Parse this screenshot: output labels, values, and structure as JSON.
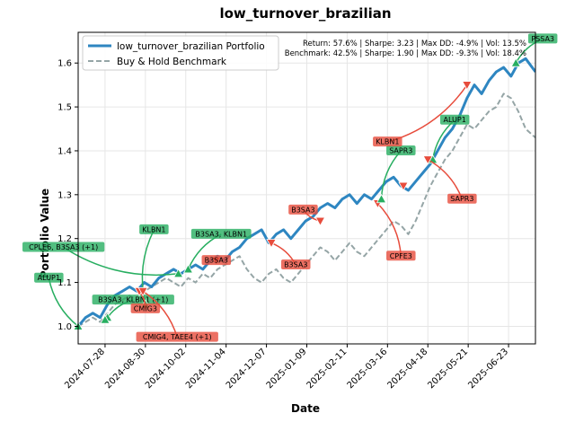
{
  "chart_data": {
    "type": "line",
    "title": "low_turnover_brazilian",
    "xlabel": "Date",
    "ylabel": "Portfolio Value",
    "xlim": [
      "2024-07-06",
      "2025-07-15"
    ],
    "ylim": [
      0.96,
      1.67
    ],
    "x_ticks": [
      "2024-07-28",
      "2024-08-30",
      "2024-10-02",
      "2024-11-04",
      "2024-12-07",
      "2025-01-09",
      "2025-02-11",
      "2025-03-16",
      "2025-04-18",
      "2025-05-21",
      "2025-06-23"
    ],
    "y_ticks": [
      1.0,
      1.1,
      1.2,
      1.3,
      1.4,
      1.5,
      1.6
    ],
    "y_tick_labels": [
      "1.0",
      "1.1",
      "1.2",
      "1.3",
      "1.4",
      "1.5",
      "1.6"
    ],
    "grid": true,
    "legend_position": "top-left",
    "stats_text": [
      "Return: 57.6% | Sharpe: 3.23 | Max DD: -4.9% | Vol: 13.5%",
      "Benchmark: 42.5% | Sharpe: 1.90 | Max DD: -9.3% | Vol: 18.4%"
    ],
    "series": [
      {
        "name": "low_turnover_brazilian Portfolio",
        "color": "#2e86c1",
        "style": "solid",
        "points": [
          [
            "2024-07-06",
            1.0
          ],
          [
            "2024-07-12",
            1.02
          ],
          [
            "2024-07-18",
            1.03
          ],
          [
            "2024-07-24",
            1.02
          ],
          [
            "2024-07-30",
            1.05
          ],
          [
            "2024-08-05",
            1.07
          ],
          [
            "2024-08-11",
            1.08
          ],
          [
            "2024-08-17",
            1.09
          ],
          [
            "2024-08-23",
            1.08
          ],
          [
            "2024-08-29",
            1.1
          ],
          [
            "2024-09-04",
            1.09
          ],
          [
            "2024-09-10",
            1.11
          ],
          [
            "2024-09-16",
            1.12
          ],
          [
            "2024-09-22",
            1.13
          ],
          [
            "2024-09-28",
            1.12
          ],
          [
            "2024-10-04",
            1.13
          ],
          [
            "2024-10-10",
            1.14
          ],
          [
            "2024-10-16",
            1.13
          ],
          [
            "2024-10-22",
            1.15
          ],
          [
            "2024-10-28",
            1.16
          ],
          [
            "2024-11-03",
            1.15
          ],
          [
            "2024-11-09",
            1.17
          ],
          [
            "2024-11-15",
            1.18
          ],
          [
            "2024-11-21",
            1.2
          ],
          [
            "2024-11-27",
            1.21
          ],
          [
            "2024-12-03",
            1.22
          ],
          [
            "2024-12-09",
            1.19
          ],
          [
            "2024-12-15",
            1.21
          ],
          [
            "2024-12-21",
            1.22
          ],
          [
            "2024-12-27",
            1.2
          ],
          [
            "2025-01-02",
            1.22
          ],
          [
            "2025-01-08",
            1.24
          ],
          [
            "2025-01-14",
            1.25
          ],
          [
            "2025-01-20",
            1.27
          ],
          [
            "2025-01-26",
            1.28
          ],
          [
            "2025-02-01",
            1.27
          ],
          [
            "2025-02-07",
            1.29
          ],
          [
            "2025-02-13",
            1.3
          ],
          [
            "2025-02-19",
            1.28
          ],
          [
            "2025-02-25",
            1.3
          ],
          [
            "2025-03-03",
            1.29
          ],
          [
            "2025-03-09",
            1.31
          ],
          [
            "2025-03-15",
            1.33
          ],
          [
            "2025-03-21",
            1.34
          ],
          [
            "2025-03-27",
            1.32
          ],
          [
            "2025-04-02",
            1.31
          ],
          [
            "2025-04-08",
            1.33
          ],
          [
            "2025-04-14",
            1.35
          ],
          [
            "2025-04-20",
            1.37
          ],
          [
            "2025-04-26",
            1.4
          ],
          [
            "2025-05-02",
            1.43
          ],
          [
            "2025-05-08",
            1.45
          ],
          [
            "2025-05-14",
            1.48
          ],
          [
            "2025-05-20",
            1.52
          ],
          [
            "2025-05-26",
            1.55
          ],
          [
            "2025-06-01",
            1.53
          ],
          [
            "2025-06-07",
            1.56
          ],
          [
            "2025-06-13",
            1.58
          ],
          [
            "2025-06-19",
            1.59
          ],
          [
            "2025-06-25",
            1.57
          ],
          [
            "2025-07-01",
            1.6
          ],
          [
            "2025-07-07",
            1.61
          ],
          [
            "2025-07-15",
            1.58
          ]
        ]
      },
      {
        "name": "Buy & Hold Benchmark",
        "color": "#95a5a6",
        "style": "dashed",
        "points": [
          [
            "2024-07-06",
            1.0
          ],
          [
            "2024-07-12",
            1.01
          ],
          [
            "2024-07-18",
            1.02
          ],
          [
            "2024-07-24",
            1.01
          ],
          [
            "2024-07-30",
            1.03
          ],
          [
            "2024-08-05",
            1.05
          ],
          [
            "2024-08-11",
            1.06
          ],
          [
            "2024-08-17",
            1.07
          ],
          [
            "2024-08-23",
            1.06
          ],
          [
            "2024-08-29",
            1.08
          ],
          [
            "2024-09-04",
            1.09
          ],
          [
            "2024-09-10",
            1.1
          ],
          [
            "2024-09-16",
            1.11
          ],
          [
            "2024-09-22",
            1.1
          ],
          [
            "2024-09-28",
            1.09
          ],
          [
            "2024-10-04",
            1.11
          ],
          [
            "2024-10-10",
            1.1
          ],
          [
            "2024-10-16",
            1.12
          ],
          [
            "2024-10-22",
            1.11
          ],
          [
            "2024-10-28",
            1.13
          ],
          [
            "2024-11-03",
            1.14
          ],
          [
            "2024-11-09",
            1.15
          ],
          [
            "2024-11-15",
            1.16
          ],
          [
            "2024-11-21",
            1.13
          ],
          [
            "2024-11-27",
            1.11
          ],
          [
            "2024-12-03",
            1.1
          ],
          [
            "2024-12-09",
            1.12
          ],
          [
            "2024-12-15",
            1.13
          ],
          [
            "2024-12-21",
            1.11
          ],
          [
            "2024-12-27",
            1.1
          ],
          [
            "2025-01-02",
            1.12
          ],
          [
            "2025-01-08",
            1.14
          ],
          [
            "2025-01-14",
            1.16
          ],
          [
            "2025-01-20",
            1.18
          ],
          [
            "2025-01-26",
            1.17
          ],
          [
            "2025-02-01",
            1.15
          ],
          [
            "2025-02-07",
            1.17
          ],
          [
            "2025-02-13",
            1.19
          ],
          [
            "2025-02-19",
            1.17
          ],
          [
            "2025-02-25",
            1.16
          ],
          [
            "2025-03-03",
            1.18
          ],
          [
            "2025-03-09",
            1.2
          ],
          [
            "2025-03-15",
            1.22
          ],
          [
            "2025-03-21",
            1.24
          ],
          [
            "2025-03-27",
            1.23
          ],
          [
            "2025-04-02",
            1.21
          ],
          [
            "2025-04-08",
            1.24
          ],
          [
            "2025-04-14",
            1.28
          ],
          [
            "2025-04-20",
            1.32
          ],
          [
            "2025-04-26",
            1.35
          ],
          [
            "2025-05-02",
            1.38
          ],
          [
            "2025-05-08",
            1.4
          ],
          [
            "2025-05-14",
            1.43
          ],
          [
            "2025-05-20",
            1.46
          ],
          [
            "2025-05-26",
            1.45
          ],
          [
            "2025-06-01",
            1.47
          ],
          [
            "2025-06-07",
            1.49
          ],
          [
            "2025-06-13",
            1.5
          ],
          [
            "2025-06-19",
            1.53
          ],
          [
            "2025-06-25",
            1.52
          ],
          [
            "2025-07-01",
            1.49
          ],
          [
            "2025-07-07",
            1.45
          ],
          [
            "2025-07-15",
            1.43
          ]
        ]
      }
    ],
    "annotations": [
      {
        "label": "ALUP1",
        "kind": "buy",
        "point": [
          "2024-07-06",
          1.0
        ],
        "text_at": [
          "2024-06-12",
          1.11
        ]
      },
      {
        "label": "CPLE6, B3SA3 (+1)",
        "kind": "buy",
        "point": [
          "2024-09-26",
          1.12
        ],
        "text_at": [
          "2024-06-24",
          1.18
        ]
      },
      {
        "label": "B3SA3, KLBN1 (+1)",
        "kind": "buy",
        "point": [
          "2024-07-30",
          1.02
        ],
        "text_at": [
          "2024-08-20",
          1.06
        ]
      },
      {
        "label": "KLBN1",
        "kind": "buy",
        "point": [
          "2024-08-30",
          1.05
        ],
        "text_at": [
          "2024-09-06",
          1.22
        ]
      },
      {
        "label": "CMIG3",
        "kind": "sell",
        "point": [
          "2024-08-25",
          1.08
        ],
        "text_at": [
          "2024-08-30",
          1.04
        ]
      },
      {
        "label": "CMIG4, TAEE4 (+1)",
        "kind": "sell",
        "point": [
          "2024-08-28",
          1.08
        ],
        "text_at": [
          "2024-09-25",
          0.975
        ]
      },
      {
        "label": "B3SA3, KLBN1",
        "kind": "buy",
        "point": [
          "2024-10-04",
          1.13
        ],
        "text_at": [
          "2024-10-31",
          1.21
        ]
      },
      {
        "label": "B3SA3",
        "kind": "sell",
        "point": [
          "2024-10-27",
          1.15
        ],
        "text_at": [
          "2024-10-27",
          1.15
        ]
      },
      {
        "label": "B3SA3",
        "kind": "sell",
        "point": [
          "2024-12-11",
          1.19
        ],
        "text_at": [
          "2024-12-31",
          1.14
        ]
      },
      {
        "label": "B3SA3",
        "kind": "sell",
        "point": [
          "2025-01-20",
          1.24
        ],
        "text_at": [
          "2025-01-06",
          1.265
        ]
      },
      {
        "label": "CPFE3",
        "kind": "sell",
        "point": [
          "2025-03-08",
          1.28
        ],
        "text_at": [
          "2025-03-27",
          1.16
        ]
      },
      {
        "label": "SAPR3",
        "kind": "buy",
        "point": [
          "2025-03-11",
          1.29
        ],
        "text_at": [
          "2025-03-27",
          1.4
        ]
      },
      {
        "label": "KLBN1",
        "kind": "sell",
        "point": [
          "2025-05-20",
          1.55
        ],
        "text_at": [
          "2025-03-16",
          1.42
        ]
      },
      {
        "label": "ALUP1",
        "kind": "buy",
        "point": [
          "2025-04-22",
          1.38
        ],
        "text_at": [
          "2025-05-10",
          1.47
        ]
      },
      {
        "label": "SAPR3",
        "kind": "sell",
        "point": [
          "2025-04-18",
          1.38
        ],
        "text_at": [
          "2025-05-16",
          1.29
        ]
      },
      {
        "label": "PSSA3",
        "kind": "buy",
        "point": [
          "2025-06-29",
          1.6
        ],
        "text_at": [
          "2025-07-21",
          1.655
        ]
      }
    ],
    "extra_markers": [
      {
        "kind": "sell",
        "point": [
          "2025-03-29",
          1.32
        ]
      },
      {
        "kind": "buy",
        "point": [
          "2024-07-28",
          1.015
        ]
      }
    ]
  }
}
